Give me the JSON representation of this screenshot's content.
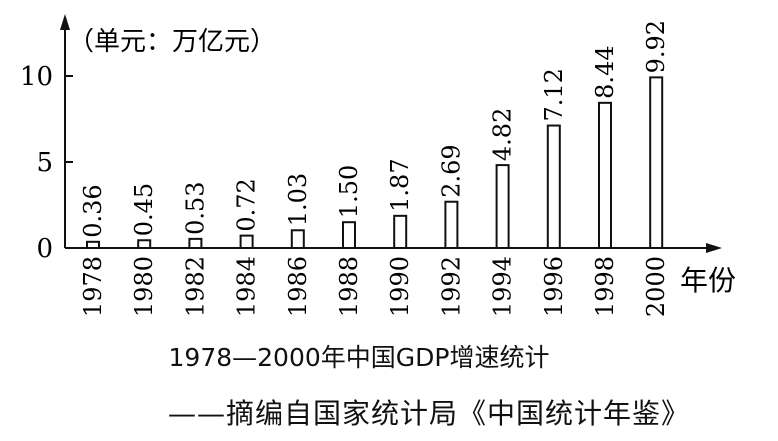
{
  "chart_data": {
    "type": "bar",
    "categories": [
      "1978",
      "1980",
      "1982",
      "1984",
      "1986",
      "1988",
      "1990",
      "1992",
      "1994",
      "1996",
      "1998",
      "2000"
    ],
    "values": [
      0.36,
      0.45,
      0.53,
      0.72,
      1.03,
      1.5,
      1.87,
      2.69,
      4.82,
      7.12,
      8.44,
      9.92
    ],
    "value_labels": [
      "0.36",
      "0.45",
      "0.53",
      "0.72",
      "1.03",
      "1.50",
      "1.87",
      "2.69",
      "4.82",
      "7.12",
      "8.44",
      "9.92"
    ],
    "ylim": [
      0,
      12
    ],
    "yticks": [
      0,
      5,
      10
    ],
    "unit_label": "（单元：万亿元）",
    "xlabel": "年份",
    "title": "1978—2000年中国GDP增速统计",
    "source": "——摘编自国家统计局《中国统计年鉴》",
    "grid": false,
    "legend": "none"
  }
}
